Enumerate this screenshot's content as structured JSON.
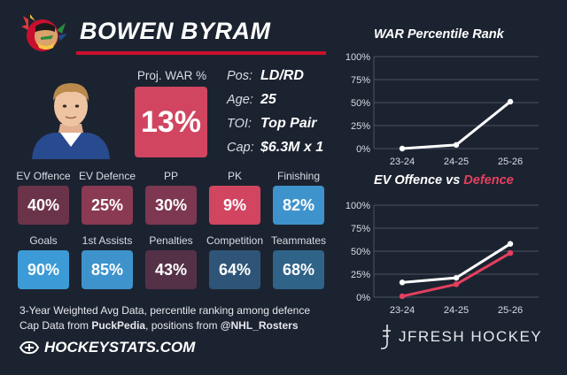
{
  "player": {
    "name": "BOWEN BYRAM",
    "proj_war_label": "Proj. WAR %",
    "proj_war_value": "13%",
    "proj_war_color": "#d14560"
  },
  "info": [
    {
      "key": "Pos:",
      "value": "LD/RD"
    },
    {
      "key": "Age:",
      "value": "25"
    },
    {
      "key": "TOI:",
      "value": "Top Pair"
    },
    {
      "key": "Cap:",
      "value": "$6.3M x 1"
    }
  ],
  "tiles": [
    {
      "label": "EV Offence",
      "value": "40%",
      "color": "#6b3349"
    },
    {
      "label": "EV Defence",
      "value": "25%",
      "color": "#8a3a52"
    },
    {
      "label": "PP",
      "value": "30%",
      "color": "#7d3750"
    },
    {
      "label": "PK",
      "value": "9%",
      "color": "#d14560"
    },
    {
      "label": "Finishing",
      "value": "82%",
      "color": "#3e93cc"
    },
    {
      "label": "Goals",
      "value": "90%",
      "color": "#3c9bd6"
    },
    {
      "label": "1st Assists",
      "value": "85%",
      "color": "#3e93cc"
    },
    {
      "label": "Penalties",
      "value": "43%",
      "color": "#553148"
    },
    {
      "label": "Competition",
      "value": "64%",
      "color": "#2e5577"
    },
    {
      "label": "Teammates",
      "value": "68%",
      "color": "#2f6388"
    }
  ],
  "footer": {
    "line1": "3-Year Weighted Avg Data, percentile ranking among defence",
    "line2_prefix": "Cap Data from ",
    "line2_src1": "PuckPedia",
    "line2_mid": ", positions from ",
    "line2_src2": "@NHL_Rosters",
    "brand": "HOCKEYSTATS.COM",
    "credit": "JFRESH HOCKEY"
  },
  "charts": {
    "war_title": "WAR Percentile Rank",
    "ev_title_part1": "EV Offence",
    "ev_title_part2": " vs ",
    "ev_title_part3": "Defence",
    "ev_accent_color": "#e5405e"
  },
  "chart_data": [
    {
      "type": "line",
      "title": "WAR Percentile Rank",
      "x": [
        "23-24",
        "24-25",
        "25-26"
      ],
      "yticks": [
        "100%",
        "75%",
        "50%",
        "25%",
        "0%"
      ],
      "ylim": [
        0,
        100
      ],
      "series": [
        {
          "values": [
            0,
            4,
            51
          ],
          "color": "#ffffff"
        }
      ]
    },
    {
      "type": "line",
      "title": "EV Offence vs Defence",
      "x": [
        "23-24",
        "24-25",
        "25-26"
      ],
      "yticks": [
        "100%",
        "75%",
        "50%",
        "25%",
        "0%"
      ],
      "ylim": [
        0,
        100
      ],
      "series": [
        {
          "name": "EV Offence",
          "values": [
            16,
            21,
            58
          ],
          "color": "#ffffff"
        },
        {
          "name": "Defence",
          "values": [
            1,
            14,
            48
          ],
          "color": "#e5405e"
        }
      ]
    }
  ]
}
